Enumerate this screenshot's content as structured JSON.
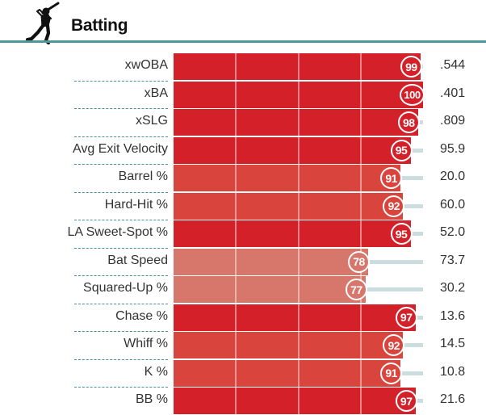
{
  "section": {
    "title": "Batting",
    "icon": "batter-silhouette-icon"
  },
  "colors": {
    "rule": "#4a9a9a",
    "track": "#ccdddf"
  },
  "chart_data": {
    "type": "bar",
    "orientation": "horizontal",
    "xlim": [
      0,
      100
    ],
    "grid": true,
    "categories": [
      "xwOBA",
      "xBA",
      "xSLG",
      "Avg Exit Velocity",
      "Barrel %",
      "Hard-Hit %",
      "LA Sweet-Spot %",
      "Bat Speed",
      "Squared-Up %",
      "Chase %",
      "Whiff %",
      "K %",
      "BB %"
    ],
    "rows": [
      {
        "label": "xwOBA",
        "percentile": 99,
        "value": ".544",
        "color": "#d42029"
      },
      {
        "label": "xBA",
        "percentile": 100,
        "value": ".401",
        "color": "#d42029"
      },
      {
        "label": "xSLG",
        "percentile": 98,
        "value": ".809",
        "color": "#d42029"
      },
      {
        "label": "Avg Exit Velocity",
        "percentile": 95,
        "value": "95.9",
        "color": "#d42029"
      },
      {
        "label": "Barrel %",
        "percentile": 91,
        "value": "20.0",
        "color": "#d9443d"
      },
      {
        "label": "Hard-Hit %",
        "percentile": 92,
        "value": "60.0",
        "color": "#d9443d"
      },
      {
        "label": "LA Sweet-Spot %",
        "percentile": 95,
        "value": "52.0",
        "color": "#d42029"
      },
      {
        "label": "Bat Speed",
        "percentile": 78,
        "value": "73.7",
        "color": "#d7776c"
      },
      {
        "label": "Squared-Up %",
        "percentile": 77,
        "value": "30.2",
        "color": "#d7776c"
      },
      {
        "label": "Chase %",
        "percentile": 97,
        "value": "13.6",
        "color": "#d42029"
      },
      {
        "label": "Whiff %",
        "percentile": 92,
        "value": "14.5",
        "color": "#d9443d"
      },
      {
        "label": "K %",
        "percentile": 91,
        "value": "10.8",
        "color": "#d9443d"
      },
      {
        "label": "BB %",
        "percentile": 97,
        "value": "21.6",
        "color": "#d42029"
      }
    ]
  }
}
